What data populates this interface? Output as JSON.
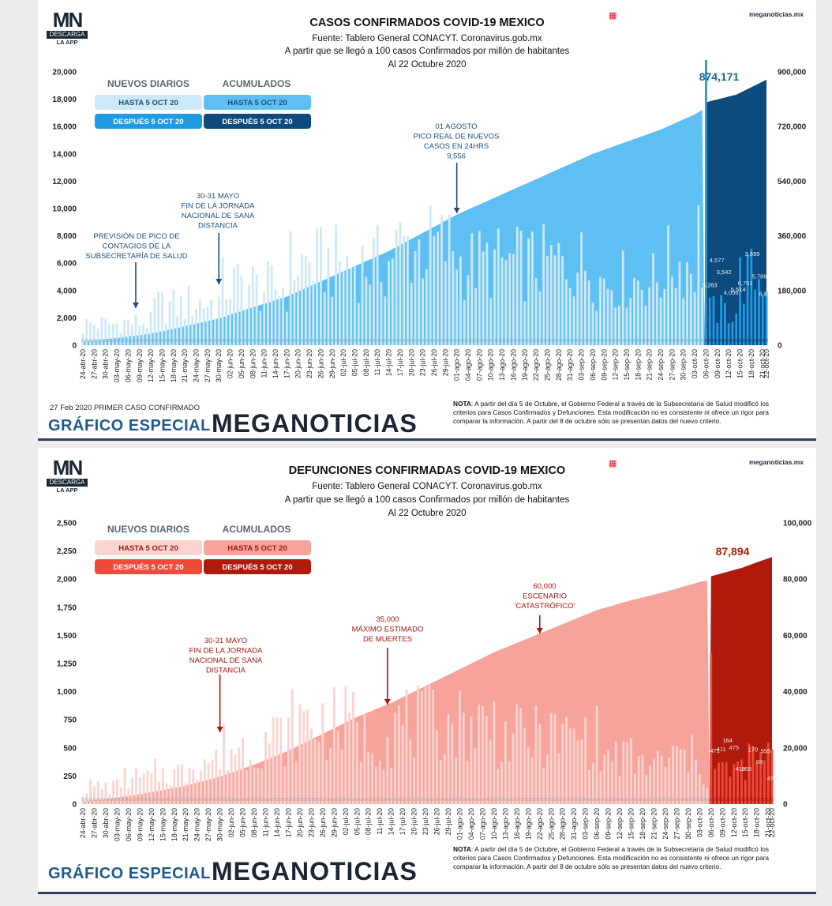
{
  "panel1": {
    "logo": {
      "mn": "MN",
      "download": "DESCARGA",
      "app": "LA APP"
    },
    "site": "meganoticias.mx",
    "title": "CASOS CONFIRMADOS COVID-19 MEXICO",
    "source": "Fuente: Tablero General CONACYT. Coronavirus.gob.mx",
    "subtitle": "A partir que se llegó a 100 casos Confirmados por millón de habitantes",
    "date": "Al 22 Octubre 2020",
    "first_case": "27 Feb 2020 PRIMER CASO CONFIRMADO",
    "banner": "GRÁFICO ESPECIAL",
    "brand": "MEGANOTICIAS",
    "nota_label": "NOTA",
    "nota": ": A partir del día 5 de Octubre, el Gobierno Federal a través de la Subsecretaría de Salud modificó los criterios para Casos Confirmados y Defunciones. Esta modificación no es consistente ni ofrece un rigor para comparar la información. A partir del 8 de octubre sólo se presentan datos del nuevo criterio.",
    "colors": {
      "daily_before": "#cde9f8",
      "daily_after": "#1e9be3",
      "cum_before": "#5ec0f2",
      "cum_after": "#0d4a7e",
      "annotation": "#1d4f78",
      "labels": "#1d4f78",
      "total": "#1b6596"
    }
  },
  "panel2": {
    "logo": {
      "mn": "MN",
      "download": "DESCARGA",
      "app": "LA APP"
    },
    "site": "meganoticias.mx",
    "title": "DEFUNCIONES CONFIRMADAS COVID-19 MEXICO",
    "source": "Fuente: Tablero General CONACYT. Coronavirus.gob.mx",
    "subtitle": "A partir que se llegó a 100 casos Confirmados por millón de habitantes",
    "date": "Al 22 Octubre 2020",
    "banner": "GRÁFICO ESPECIAL",
    "brand": "MEGANOTICIAS",
    "nota_label": "NOTA",
    "nota": ": A partir del día 5 de Octubre, el Gobierno Federal a través de la Subsecretaría de Salud modificó los criterios para Casos Confirmados y Defunciones. Esta modificación no es consistente ni ofrece un rigor para comparar la información. A partir del 8 de octubre sólo se presentan datos del nuevo criterio.",
    "colors": {
      "daily_before": "#fbd3cf",
      "daily_after": "#ef4a3a",
      "cum_before": "#f6a39b",
      "cum_after": "#b01a0d",
      "annotation": "#a8160e",
      "labels": "#a8160e",
      "total": "#b01a0d"
    }
  },
  "chart_data": [
    {
      "type": "bar",
      "title": "CASOS CONFIRMADOS COVID-19 MEXICO",
      "x_tick_labels": [
        "24-abr-20",
        "27-abr-20",
        "30-abr-20",
        "03-may-20",
        "06-may-20",
        "09-may-20",
        "12-may-20",
        "15-may-20",
        "18-may-20",
        "21-may-20",
        "24-may-20",
        "27-may-20",
        "30-may-20",
        "02-jun-20",
        "05-jun-20",
        "08-jun-20",
        "11-jun-20",
        "14-jun-20",
        "17-jun-20",
        "20-jun-20",
        "23-jun-20",
        "26-jun-20",
        "29-jun-20",
        "02-jul-20",
        "05-jul-20",
        "08-jul-20",
        "11-jul-20",
        "14-jul-20",
        "17-jul-20",
        "20-jul-20",
        "23-jul-20",
        "26-jul-20",
        "29-jul-20",
        "01-ago-20",
        "04-ago-20",
        "07-ago-20",
        "10-ago-20",
        "13-ago-20",
        "16-ago-20",
        "19-ago-20",
        "22-ago-20",
        "25-ago-20",
        "28-ago-20",
        "31-ago-20",
        "03-sep-20",
        "06-sep-20",
        "09-sep-20",
        "12-sep-20",
        "15-sep-20",
        "18-sep-20",
        "21-sep-20",
        "24-sep-20",
        "27-sep-20",
        "30-sep-20",
        "03-oct-20",
        "06-oct-20",
        "09-oct-20",
        "12-oct-20",
        "15-oct-20",
        "18-oct-20",
        "21-oct-20",
        "22-oct-20"
      ],
      "y_left_ticks": [
        "0",
        "2,000",
        "4,000",
        "6,000",
        "8,000",
        "10,000",
        "12,000",
        "14,000",
        "16,000",
        "18,000",
        "20,000"
      ],
      "y_right_ticks": [
        "0",
        "180,000",
        "360,000",
        "540,000",
        "720,000",
        "900,000"
      ],
      "ylim_left": [
        0,
        20000
      ],
      "ylim_right": [
        0,
        900000
      ],
      "legend": {
        "daily_label": "NUEVOS DIARIOS",
        "cumulative_label": "ACUMULADOS",
        "before": "HASTA 5 OCT 20",
        "after": "DESPUÉS 5 OCT 20"
      },
      "cumulative": [
        {
          "date": "24-abr-20",
          "value": 11000
        },
        {
          "date": "03-may-20",
          "value": 24000
        },
        {
          "date": "12-may-20",
          "value": 38000
        },
        {
          "date": "21-may-20",
          "value": 62000
        },
        {
          "date": "30-may-20",
          "value": 88000
        },
        {
          "date": "08-jun-20",
          "value": 125000
        },
        {
          "date": "17-jun-20",
          "value": 160000
        },
        {
          "date": "26-jun-20",
          "value": 210000
        },
        {
          "date": "05-jul-20",
          "value": 260000
        },
        {
          "date": "14-jul-20",
          "value": 310000
        },
        {
          "date": "23-jul-20",
          "value": 370000
        },
        {
          "date": "01-ago-20",
          "value": 430000
        },
        {
          "date": "10-ago-20",
          "value": 480000
        },
        {
          "date": "19-ago-20",
          "value": 530000
        },
        {
          "date": "28-ago-20",
          "value": 580000
        },
        {
          "date": "06-sep-20",
          "value": 630000
        },
        {
          "date": "15-sep-20",
          "value": 670000
        },
        {
          "date": "24-sep-20",
          "value": 710000
        },
        {
          "date": "03-oct-20",
          "value": 760000
        },
        {
          "date": "05-oct-20",
          "value": 775000
        },
        {
          "date": "06-oct-20",
          "value": 800000
        },
        {
          "date": "14-oct-20",
          "value": 825000
        },
        {
          "date": "22-oct-20",
          "value": 874171
        }
      ],
      "daily_after_labels": [
        "5,263",
        "4,577",
        "3,542",
        "4,056",
        "5,514",
        "6,751",
        "3,699",
        "5,786",
        "6,812"
      ],
      "total_label": "874,171",
      "annotations": [
        {
          "text": [
            "PREVISIÓN DE PICO DE",
            "CONTAGIOS DE LA",
            "SUBSECRETARÍA DE SALUD"
          ],
          "date": "08-may-20"
        },
        {
          "text": [
            "30-31 MAYO",
            "FIN DE LA JORNADA",
            "NACIONAL DE SANA",
            "DISTANCIA"
          ],
          "date": "30-may-20"
        },
        {
          "text": [
            "01 AGOSTO",
            "PICO REAL DE NUEVOS",
            "CASOS EN 24HRS",
            "9,556"
          ],
          "date": "01-ago-20"
        }
      ]
    },
    {
      "type": "bar",
      "title": "DEFUNCIONES CONFIRMADAS COVID-19 MEXICO",
      "x_tick_labels": [
        "24-abr-20",
        "27-abr-20",
        "30-abr-20",
        "03-may-20",
        "06-may-20",
        "09-may-20",
        "12-may-20",
        "15-may-20",
        "18-may-20",
        "21-may-20",
        "24-may-20",
        "27-may-20",
        "30-may-20",
        "02-jun-20",
        "05-jun-20",
        "08-jun-20",
        "11-jun-20",
        "14-jun-20",
        "17-jun-20",
        "20-jun-20",
        "23-jun-20",
        "26-jun-20",
        "29-jun-20",
        "02-jul-20",
        "05-jul-20",
        "08-jul-20",
        "11-jul-20",
        "14-jul-20",
        "17-jul-20",
        "20-jul-20",
        "23-jul-20",
        "26-jul-20",
        "29-jul-20",
        "01-ago-20",
        "04-ago-20",
        "07-ago-20",
        "10-ago-20",
        "13-ago-20",
        "16-ago-20",
        "19-ago-20",
        "22-ago-20",
        "25-ago-20",
        "28-ago-20",
        "31-ago-20",
        "03-sep-20",
        "06-sep-20",
        "09-sep-20",
        "12-sep-20",
        "15-sep-20",
        "18-sep-20",
        "21-sep-20",
        "24-sep-20",
        "27-sep-20",
        "30-sep-20",
        "03-oct-20",
        "06-oct-20",
        "09-oct-20",
        "12-oct-20",
        "15-oct-20",
        "18-oct-20",
        "21-oct-20",
        "22-oct-20"
      ],
      "y_left_ticks": [
        "0",
        "250",
        "500",
        "750",
        "1,000",
        "1,250",
        "1,500",
        "1,750",
        "2,000",
        "2,250",
        "2,500"
      ],
      "y_right_ticks": [
        "0",
        "20,000",
        "40,000",
        "60,000",
        "80,000",
        "100,000"
      ],
      "ylim_left": [
        0,
        2500
      ],
      "ylim_right": [
        0,
        100000
      ],
      "legend": {
        "daily_label": "NUEVOS DIARIOS",
        "cumulative_label": "ACUMULADOS",
        "before": "HASTA 5 OCT 20",
        "after": "DESPUÉS 5 OCT 20"
      },
      "cumulative": [
        {
          "date": "24-abr-20",
          "value": 1000
        },
        {
          "date": "03-may-20",
          "value": 2300
        },
        {
          "date": "12-may-20",
          "value": 4200
        },
        {
          "date": "21-may-20",
          "value": 6500
        },
        {
          "date": "30-may-20",
          "value": 9800
        },
        {
          "date": "08-jun-20",
          "value": 14000
        },
        {
          "date": "17-jun-20",
          "value": 19000
        },
        {
          "date": "26-jun-20",
          "value": 25000
        },
        {
          "date": "05-jul-20",
          "value": 31000
        },
        {
          "date": "14-jul-20",
          "value": 36000
        },
        {
          "date": "23-jul-20",
          "value": 42000
        },
        {
          "date": "01-ago-20",
          "value": 48000
        },
        {
          "date": "10-ago-20",
          "value": 54000
        },
        {
          "date": "19-ago-20",
          "value": 59000
        },
        {
          "date": "28-ago-20",
          "value": 64000
        },
        {
          "date": "06-sep-20",
          "value": 69000
        },
        {
          "date": "15-sep-20",
          "value": 72500
        },
        {
          "date": "24-sep-20",
          "value": 75500
        },
        {
          "date": "03-oct-20",
          "value": 79000
        },
        {
          "date": "05-oct-20",
          "value": 79500
        },
        {
          "date": "06-oct-20",
          "value": 81000
        },
        {
          "date": "14-oct-20",
          "value": 84000
        },
        {
          "date": "22-oct-20",
          "value": 87894
        }
      ],
      "daily_after_labels": [
        "471",
        "411",
        "164",
        "475",
        "419",
        "355",
        "170",
        "68",
        "555",
        "479"
      ],
      "total_label": "87,894",
      "annotations": [
        {
          "text": [
            "30-31 MAYO",
            "FIN DE LA JORNADA",
            "NACIONAL DE SANA",
            "DISTANCIA"
          ],
          "date": "30-may-20"
        },
        {
          "text": [
            "35,000",
            "MÁXIMO ESTIMADO",
            "DE MUERTES"
          ],
          "date": "13-jul-20"
        },
        {
          "text": [
            "60,000",
            "ESCENARIO",
            "'CATASTRÓFICO'"
          ],
          "date": "22-ago-20"
        }
      ]
    }
  ]
}
